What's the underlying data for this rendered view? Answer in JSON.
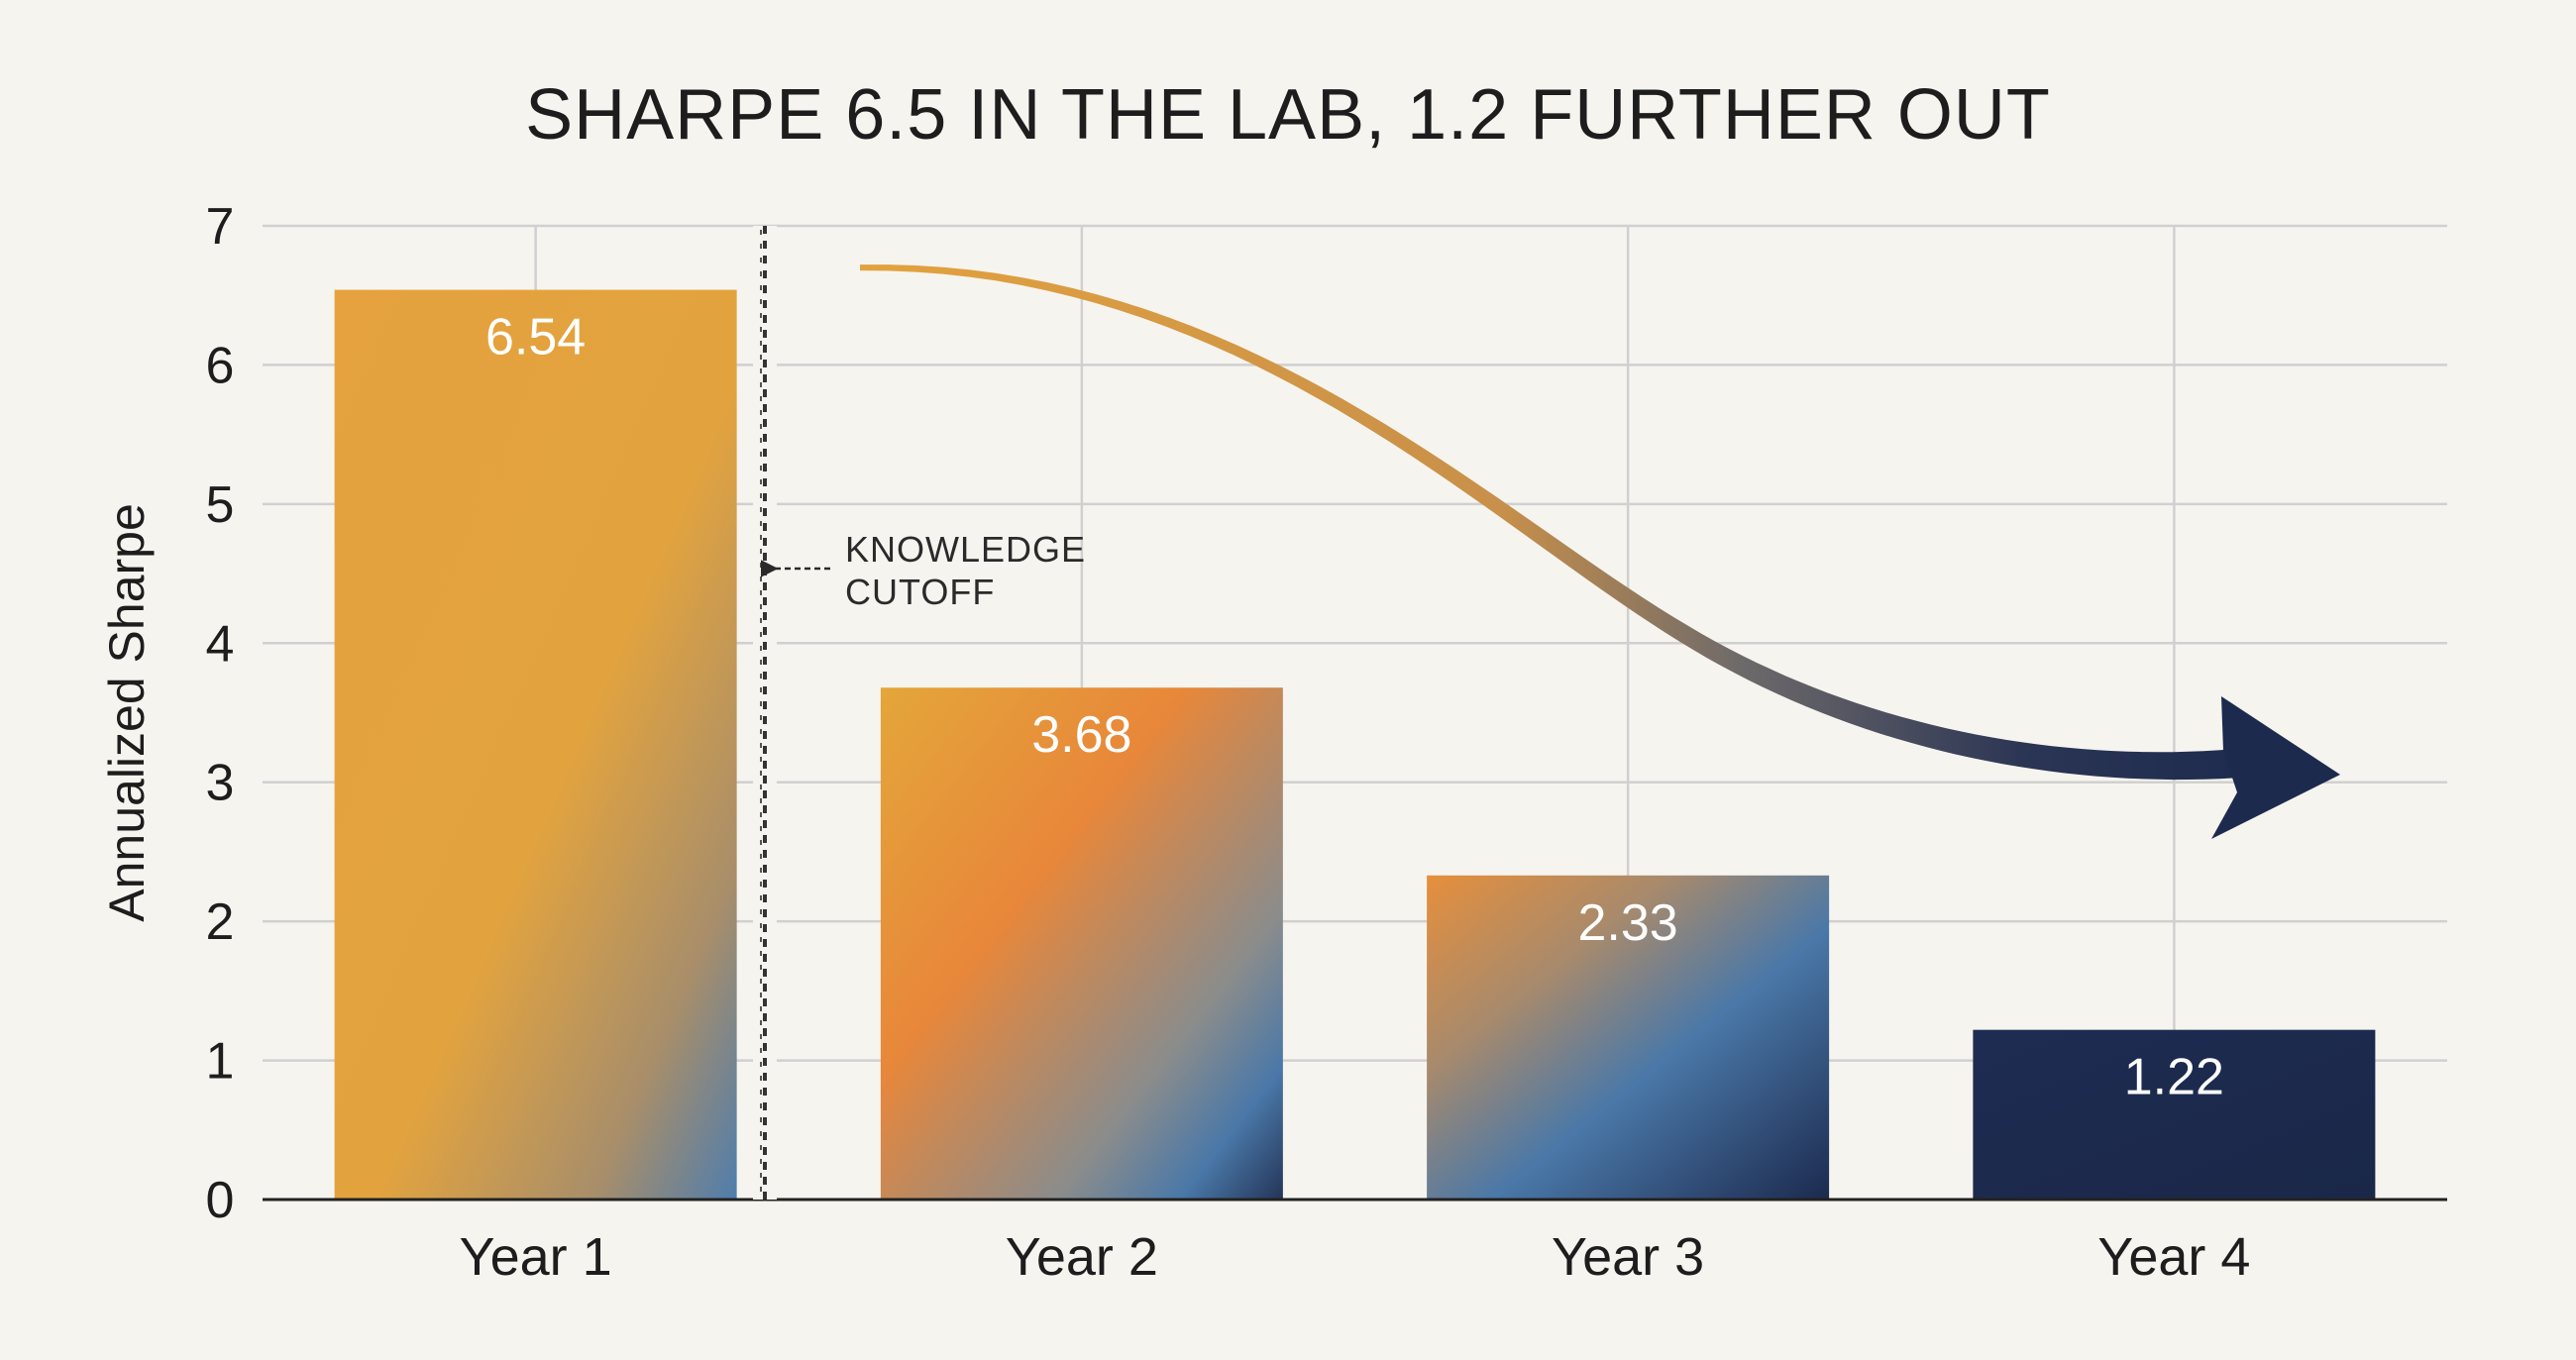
{
  "chart_data": {
    "type": "bar",
    "title": "SHARPE 6.5 IN THE LAB, 1.2 FURTHER OUT",
    "xlabel": "",
    "ylabel": "Annualized Sharpe",
    "categories": [
      "Year 1",
      "Year 2",
      "Year 3",
      "Year 4"
    ],
    "values": [
      6.54,
      3.68,
      2.33,
      1.22
    ],
    "value_labels": [
      "6.54",
      "3.68",
      "2.33",
      "1.22"
    ],
    "ylim": [
      0,
      7
    ],
    "yticks": [
      0,
      1,
      2,
      3,
      4,
      5,
      6,
      7
    ],
    "grid": true,
    "annotation": {
      "lines": [
        "KNOWLEDGE",
        "CUTOFF"
      ],
      "after_category": "Year 1"
    },
    "trend_arrow": {
      "from_value": 6.7,
      "to_value": 2.95
    },
    "colors": {
      "orange": "#e8a33c",
      "deep_orange": "#e8843a",
      "steel_blue": "#4a78a8",
      "navy": "#1c2a4e",
      "grid": "#d0d0d0",
      "background": "#f6f4ef"
    }
  }
}
